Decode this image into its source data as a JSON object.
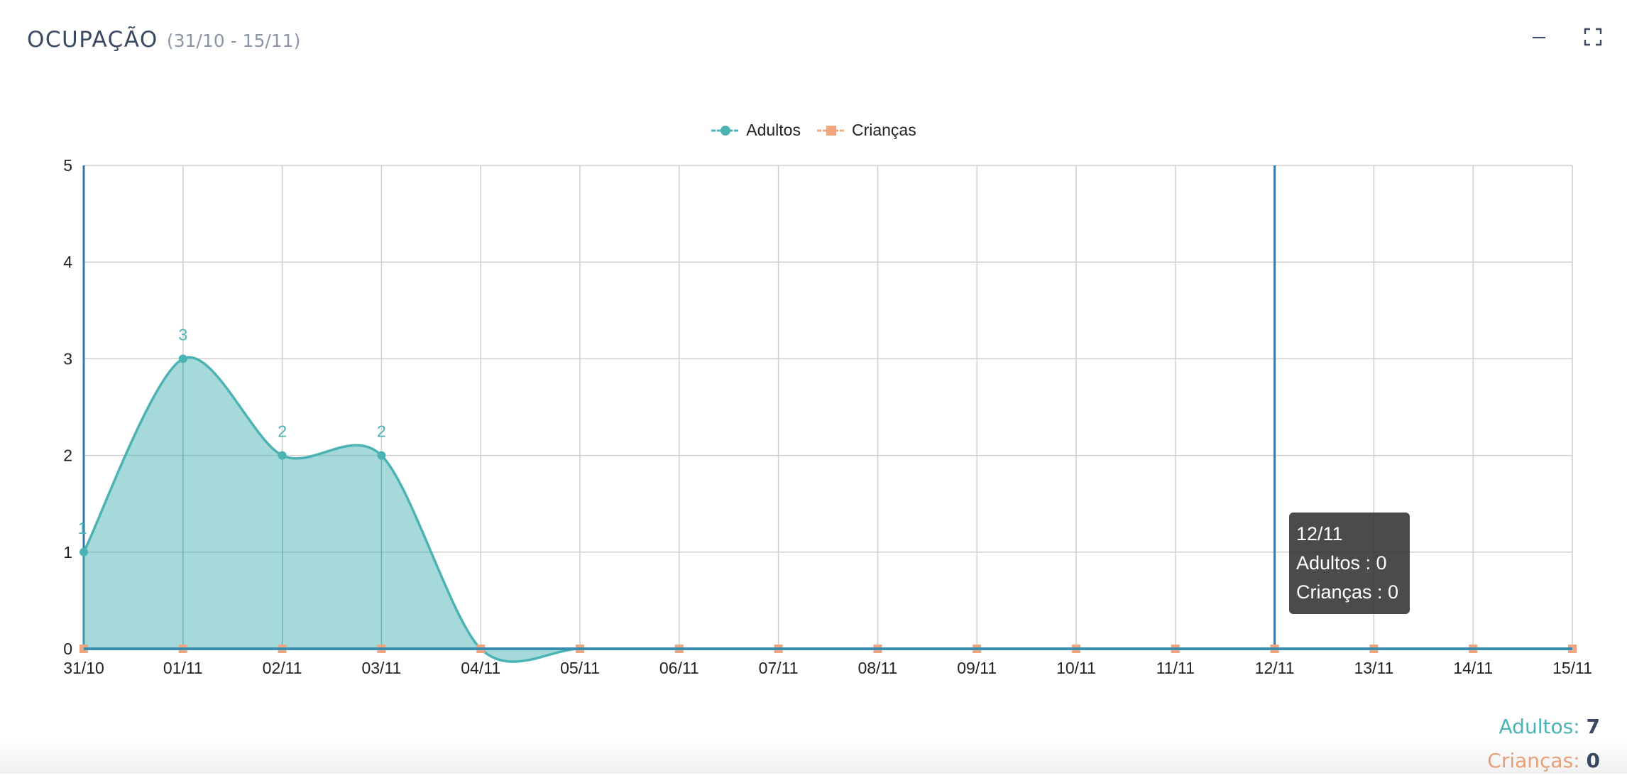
{
  "panel": {
    "title": "OCUPAÇÃO",
    "range": "(31/10 - 15/11)"
  },
  "controls": {
    "minimize_icon": "minus-icon",
    "fullscreen_icon": "expand-icon"
  },
  "legend": [
    {
      "name": "Adultos",
      "color": "#4cb3b5",
      "marker": "circle"
    },
    {
      "name": "Crianças",
      "color": "#f0a67e",
      "marker": "square"
    }
  ],
  "tooltip": {
    "title": "12/11",
    "lines": [
      "Adultos : 0",
      "Crianças : 0"
    ]
  },
  "totals": {
    "adultos_label": "Adultos:",
    "adultos_value": "7",
    "criancas_label": "Crianças:",
    "criancas_value": "0"
  },
  "chart_data": {
    "type": "area",
    "categories": [
      "31/10",
      "01/11",
      "02/11",
      "03/11",
      "04/11",
      "05/11",
      "06/11",
      "07/11",
      "08/11",
      "09/11",
      "10/11",
      "11/11",
      "12/11",
      "13/11",
      "14/11",
      "15/11"
    ],
    "series": [
      {
        "name": "Adultos",
        "color": "#4cb3b5",
        "area": true,
        "smooth": true,
        "values": [
          1,
          3,
          2,
          2,
          0,
          0,
          0,
          0,
          0,
          0,
          0,
          0,
          0,
          0,
          0,
          0
        ],
        "data_labels": [
          "1",
          "3",
          "2",
          "2"
        ]
      },
      {
        "name": "Crianças",
        "color": "#f0a67e",
        "area": false,
        "values": [
          0,
          0,
          0,
          0,
          0,
          0,
          0,
          0,
          0,
          0,
          0,
          0,
          0,
          0,
          0,
          0
        ]
      }
    ],
    "yticks": [
      "0",
      "1",
      "2",
      "3",
      "4",
      "5"
    ],
    "ylim": [
      0,
      5
    ],
    "grid": true,
    "legend_position": "top-center",
    "highlight_category": "12/11"
  }
}
